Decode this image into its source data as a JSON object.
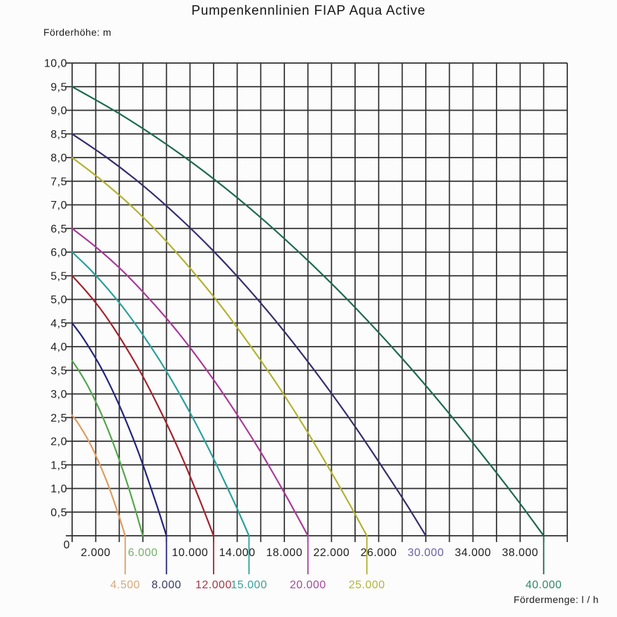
{
  "title": "Pumpenkennlinien FIAP Aqua Active",
  "background_color": "#fcfcfc",
  "grid_color": "#2e2e2e",
  "text_color": "#1e1e1e",
  "chart_data": {
    "type": "line",
    "title": "Pumpenkennlinien FIAP Aqua Active",
    "xlabel": "Fördermenge: l / h",
    "ylabel": "Förderhöhe: m",
    "xlim": [
      0,
      42000
    ],
    "ylim": [
      0,
      10
    ],
    "x_grid_step": 2000,
    "y_grid_step": 0.5,
    "grid": true,
    "legend_position": "none",
    "y_tick_labels": [
      {
        "value": 0,
        "label": "0"
      },
      {
        "value": 0.5,
        "label": "0,5"
      },
      {
        "value": 1,
        "label": "1,0"
      },
      {
        "value": 1.5,
        "label": "1,5"
      },
      {
        "value": 2,
        "label": "2,0"
      },
      {
        "value": 2.5,
        "label": "2,5"
      },
      {
        "value": 3,
        "label": "3,0"
      },
      {
        "value": 3.5,
        "label": "3,5"
      },
      {
        "value": 4,
        "label": "4,0"
      },
      {
        "value": 4.5,
        "label": "4,5"
      },
      {
        "value": 5,
        "label": "5,0"
      },
      {
        "value": 5.5,
        "label": "5,5"
      },
      {
        "value": 6,
        "label": "6,0"
      },
      {
        "value": 6.5,
        "label": "6,5"
      },
      {
        "value": 7,
        "label": "7,0"
      },
      {
        "value": 7.5,
        "label": "7,5"
      },
      {
        "value": 8,
        "label": "8,0"
      },
      {
        "value": 8.5,
        "label": "8,5"
      },
      {
        "value": 9,
        "label": "9,0"
      },
      {
        "value": 9.5,
        "label": "9,5"
      },
      {
        "value": 10,
        "label": "10,0"
      }
    ],
    "x_tick_labels_row1": [
      {
        "value": 2000,
        "label": "2.000",
        "color": "#1e1e1e"
      },
      {
        "value": 6000,
        "label": "6.000",
        "color": "#74b168"
      },
      {
        "value": 10000,
        "label": "10.000",
        "color": "#1e1e1e"
      },
      {
        "value": 14000,
        "label": "14.000",
        "color": "#1e1e1e"
      },
      {
        "value": 18000,
        "label": "18.000",
        "color": "#1e1e1e"
      },
      {
        "value": 22000,
        "label": "22.000",
        "color": "#1e1e1e"
      },
      {
        "value": 26000,
        "label": "26.000",
        "color": "#1e1e1e"
      },
      {
        "value": 30000,
        "label": "30.000",
        "color": "#6b60a1"
      },
      {
        "value": 34000,
        "label": "34.000",
        "color": "#1e1e1e"
      },
      {
        "value": 38000,
        "label": "38.000",
        "color": "#1e1e1e"
      }
    ],
    "series": [
      {
        "name": "Aqua Active 4.500",
        "label": "4.500",
        "max_flow_lh": 4500,
        "max_head_m": 2.55,
        "color": "#dd9c60",
        "label_color": "#d9a878",
        "label_row": 2,
        "points": [
          [
            0,
            2.55
          ],
          [
            450,
            2.4
          ],
          [
            900,
            2.22
          ],
          [
            1350,
            2.03
          ],
          [
            1800,
            1.81
          ],
          [
            2250,
            1.56
          ],
          [
            2700,
            1.3
          ],
          [
            3150,
            1.01
          ],
          [
            3600,
            0.69
          ],
          [
            4050,
            0.36
          ],
          [
            4275,
            0.18
          ],
          [
            4500,
            0
          ]
        ]
      },
      {
        "name": "Aqua Active 6.000",
        "label": "6.000",
        "max_flow_lh": 6000,
        "max_head_m": 3.7,
        "color": "#54a64c",
        "label_color": "#74b168",
        "label_row": 1,
        "points": [
          [
            0,
            3.7
          ],
          [
            600,
            3.48
          ],
          [
            1200,
            3.23
          ],
          [
            1800,
            2.94
          ],
          [
            2400,
            2.62
          ],
          [
            3000,
            2.27
          ],
          [
            3600,
            1.88
          ],
          [
            4200,
            1.46
          ],
          [
            4800,
            1.01
          ],
          [
            5400,
            0.52
          ],
          [
            5700,
            0.26
          ],
          [
            6000,
            0
          ]
        ]
      },
      {
        "name": "Aqua Active 8.000",
        "label": "8.000",
        "max_flow_lh": 8000,
        "max_head_m": 4.5,
        "color": "#22227c",
        "label_color": "#3a3a64",
        "label_row": 2,
        "points": [
          [
            0,
            4.5
          ],
          [
            800,
            4.23
          ],
          [
            1600,
            3.92
          ],
          [
            2400,
            3.58
          ],
          [
            3200,
            3.19
          ],
          [
            4000,
            2.76
          ],
          [
            4800,
            2.29
          ],
          [
            5600,
            1.78
          ],
          [
            6400,
            1.22
          ],
          [
            7200,
            0.63
          ],
          [
            7600,
            0.32
          ],
          [
            8000,
            0
          ]
        ]
      },
      {
        "name": "Aqua Active 12.000",
        "label": "12.000",
        "max_flow_lh": 12000,
        "max_head_m": 5.5,
        "color": "#a2232d",
        "label_color": "#a63846",
        "label_row": 2,
        "points": [
          [
            0,
            5.5
          ],
          [
            1200,
            5.17
          ],
          [
            2400,
            4.8
          ],
          [
            3600,
            4.37
          ],
          [
            4800,
            3.89
          ],
          [
            6000,
            3.37
          ],
          [
            7200,
            2.79
          ],
          [
            8400,
            2.17
          ],
          [
            9600,
            1.5
          ],
          [
            10800,
            0.77
          ],
          [
            11400,
            0.39
          ],
          [
            12000,
            0
          ]
        ]
      },
      {
        "name": "Aqua Active 15.000",
        "label": "15.000",
        "max_flow_lh": 15000,
        "max_head_m": 6.0,
        "color": "#2aa09a",
        "label_color": "#3aa09a",
        "label_row": 2,
        "points": [
          [
            0,
            6
          ],
          [
            1500,
            5.64
          ],
          [
            3000,
            5.23
          ],
          [
            4500,
            4.77
          ],
          [
            6000,
            4.25
          ],
          [
            7500,
            3.68
          ],
          [
            9000,
            3.05
          ],
          [
            10500,
            2.37
          ],
          [
            12000,
            1.63
          ],
          [
            13500,
            0.84
          ],
          [
            14250,
            0.43
          ],
          [
            15000,
            0
          ]
        ]
      },
      {
        "name": "Aqua Active 20.000",
        "label": "20.000",
        "max_flow_lh": 20000,
        "max_head_m": 6.5,
        "color": "#a93a99",
        "label_color": "#a44b9b",
        "label_row": 2,
        "points": [
          [
            0,
            6.5
          ],
          [
            2000,
            6.11
          ],
          [
            4000,
            5.67
          ],
          [
            6000,
            5.16
          ],
          [
            8000,
            4.6
          ],
          [
            10000,
            3.98
          ],
          [
            12000,
            3.3
          ],
          [
            14000,
            2.56
          ],
          [
            16000,
            1.77
          ],
          [
            18000,
            0.91
          ],
          [
            19000,
            0.46
          ],
          [
            20000,
            0
          ]
        ]
      },
      {
        "name": "Aqua Active 25.000",
        "label": "25.000",
        "max_flow_lh": 25000,
        "max_head_m": 8.0,
        "color": "#b2b233",
        "label_color": "#b4b43e",
        "label_row": 2,
        "points": [
          [
            0,
            8
          ],
          [
            2500,
            7.52
          ],
          [
            5000,
            6.98
          ],
          [
            7500,
            6.36
          ],
          [
            10000,
            5.66
          ],
          [
            12500,
            4.9
          ],
          [
            15000,
            4.06
          ],
          [
            17500,
            3.16
          ],
          [
            20000,
            2.18
          ],
          [
            22500,
            1.12
          ],
          [
            23750,
            0.57
          ],
          [
            25000,
            0
          ]
        ]
      },
      {
        "name": "Aqua Active 30.000",
        "label": "30.000",
        "max_flow_lh": 30000,
        "max_head_m": 8.5,
        "color": "#352c6b",
        "label_color": "#6b60a1",
        "label_row": 1,
        "points": [
          [
            0,
            8.5
          ],
          [
            3000,
            7.99
          ],
          [
            6000,
            7.41
          ],
          [
            9000,
            6.75
          ],
          [
            12000,
            6.02
          ],
          [
            15000,
            5.21
          ],
          [
            18000,
            4.32
          ],
          [
            21000,
            3.35
          ],
          [
            24000,
            2.31
          ],
          [
            27000,
            1.19
          ],
          [
            28500,
            0.61
          ],
          [
            30000,
            0
          ]
        ]
      },
      {
        "name": "Aqua Active 40.000",
        "label": "40.000",
        "max_flow_lh": 40000,
        "max_head_m": 9.5,
        "color": "#1c6a4d",
        "label_color": "#2f8a68",
        "label_row": 2,
        "points": [
          [
            0,
            9.5
          ],
          [
            4000,
            8.93
          ],
          [
            8000,
            8.28
          ],
          [
            12000,
            7.55
          ],
          [
            16000,
            6.73
          ],
          [
            20000,
            5.82
          ],
          [
            24000,
            4.83
          ],
          [
            28000,
            3.75
          ],
          [
            32000,
            2.58
          ],
          [
            36000,
            1.33
          ],
          [
            38000,
            0.68
          ],
          [
            40000,
            0
          ]
        ]
      }
    ]
  }
}
